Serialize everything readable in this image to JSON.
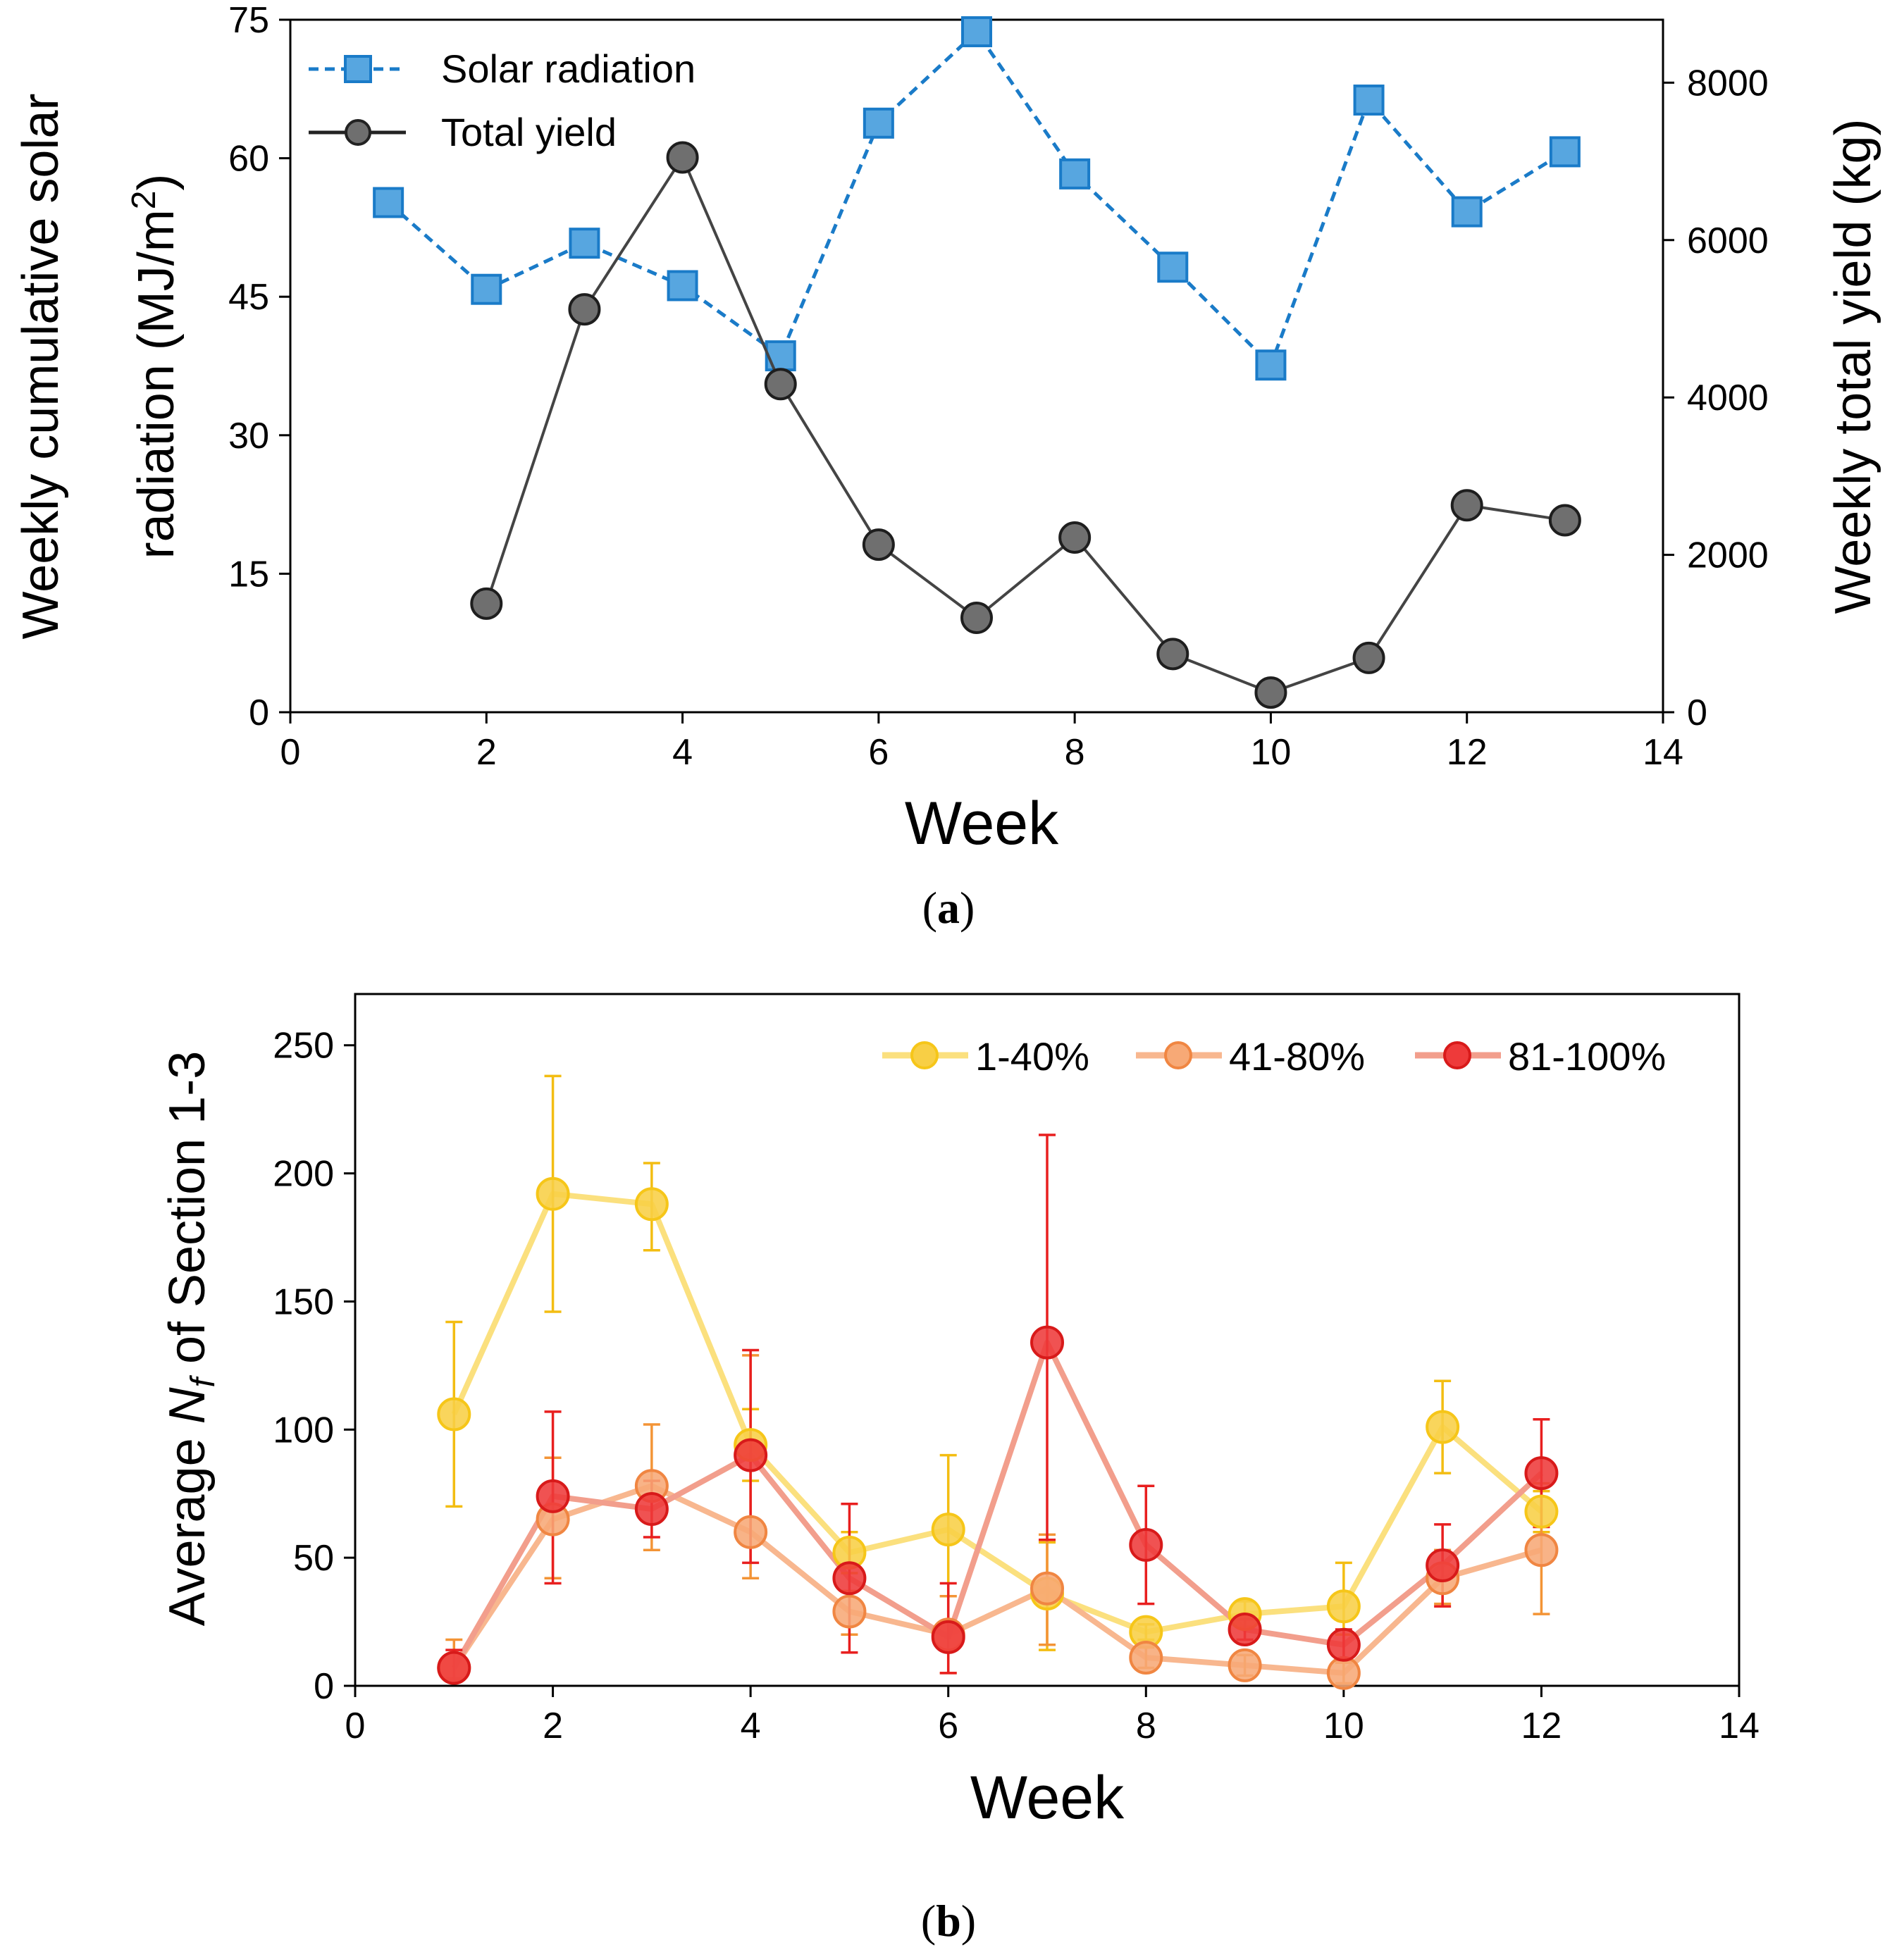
{
  "chart_data": [
    {
      "panel_label": "a",
      "type": "line",
      "xlabel": "Week",
      "xlim": [
        0,
        14
      ],
      "xticks": [
        0,
        2,
        4,
        6,
        8,
        10,
        12,
        14
      ],
      "ylabel_line1": "Weekly cumulative solar",
      "ylabel_line2_prefix": "radiation (MJ/m",
      "ylabel_sup": "2",
      "ylabel_line2_suffix": ")",
      "ylim": [
        0,
        75
      ],
      "yticks": [
        0,
        15,
        30,
        45,
        60,
        75
      ],
      "y2label": "Weekly total yield (kg)",
      "y2lim": [
        0,
        8800
      ],
      "y2ticks": [
        0,
        2000,
        4000,
        6000,
        8000
      ],
      "legend_position": "top-left",
      "series": [
        {
          "name": "Solar radiation",
          "axis": "left",
          "color": "#1a7bc8",
          "fill": "#57a6e0",
          "marker": "square",
          "line": "dashed",
          "x": [
            1,
            2,
            3,
            4,
            5,
            6,
            7,
            8,
            9,
            10,
            11,
            12,
            13
          ],
          "values": [
            55.2,
            45.8,
            50.8,
            46.2,
            38.6,
            63.8,
            73.7,
            58.3,
            48.2,
            37.6,
            66.3,
            54.2,
            60.7
          ]
        },
        {
          "name": "Total yield",
          "axis": "right",
          "color": "#444444",
          "fill": "#6f6f6f",
          "marker": "circle",
          "line": "solid",
          "x": [
            2,
            3,
            4,
            5,
            6,
            7,
            8,
            9,
            10,
            11,
            12,
            13
          ],
          "values": [
            1380,
            5120,
            7050,
            4170,
            2130,
            1200,
            2220,
            740,
            250,
            690,
            2630,
            2440
          ]
        }
      ]
    },
    {
      "panel_label": "b",
      "type": "line",
      "xlabel": "Week",
      "xlim": [
        0,
        14
      ],
      "xticks": [
        0,
        2,
        4,
        6,
        8,
        10,
        12,
        14
      ],
      "ylabel_prefix": "Average ",
      "ylabel_var": "N",
      "ylabel_sub": "f",
      "ylabel_suffix": " of Section 1-3",
      "ylim": [
        0,
        270
      ],
      "yticks": [
        0,
        50,
        100,
        150,
        200,
        250
      ],
      "legend_position": "top-right",
      "series": [
        {
          "name": "1-40%",
          "line_color": "#fbe07e",
          "marker_fill": "#f8cf45",
          "marker_edge": "#f6c619",
          "error_color": "#f3bd12",
          "x": [
            1,
            2,
            3,
            4,
            5,
            6,
            7,
            8,
            9,
            10,
            11,
            12
          ],
          "values": [
            106,
            192,
            188,
            94,
            52,
            61,
            36,
            21,
            28,
            31,
            101,
            68
          ],
          "err_low": [
            70,
            146,
            170,
            80,
            44,
            35,
            14,
            18,
            23,
            20,
            83,
            60
          ],
          "err_high": [
            142,
            238,
            204,
            108,
            60,
            90,
            56,
            24,
            33,
            48,
            119,
            76
          ]
        },
        {
          "name": "41-80%",
          "line_color": "#f8b78f",
          "marker_fill": "#f7a976",
          "marker_edge": "#f08642",
          "error_color": "#f39436",
          "x": [
            1,
            2,
            3,
            4,
            5,
            6,
            7,
            8,
            9,
            10,
            11,
            12
          ],
          "values": [
            7,
            65,
            78,
            60,
            29,
            20,
            38,
            11,
            8,
            5,
            42,
            53
          ],
          "err_low": [
            3,
            42,
            53,
            42,
            20,
            5,
            16,
            7,
            4,
            1,
            32,
            28
          ],
          "err_high": [
            18,
            89,
            102,
            129,
            37,
            35,
            59,
            15,
            12,
            9,
            53,
            79
          ]
        },
        {
          "name": "81-100%",
          "line_color": "#f29e8c",
          "marker_fill": "#ee3a3a",
          "marker_edge": "#d81a1a",
          "error_color": "#e81f1f",
          "x": [
            1,
            2,
            3,
            4,
            5,
            6,
            7,
            8,
            9,
            10,
            11,
            12
          ],
          "values": [
            7,
            74,
            69,
            90,
            42,
            19,
            134,
            55,
            22,
            16,
            47,
            83
          ],
          "err_low": [
            2,
            40,
            58,
            48,
            13,
            5,
            57,
            32,
            18,
            10,
            31,
            62
          ],
          "err_high": [
            14,
            107,
            80,
            131,
            71,
            40,
            215,
            78,
            26,
            22,
            63,
            104
          ]
        }
      ]
    }
  ]
}
